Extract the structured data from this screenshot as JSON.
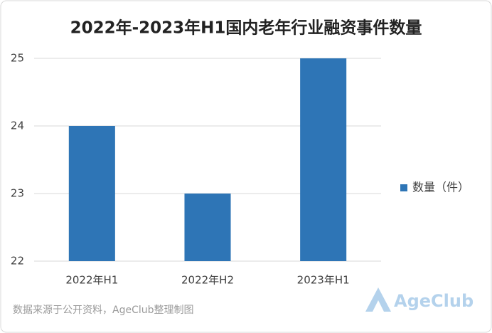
{
  "chart_data": {
    "type": "bar",
    "title": "2022年-2023年H1国内老年行业融资事件数量",
    "categories": [
      "2022年H1",
      "2022年H2",
      "2023年H1"
    ],
    "series": [
      {
        "name": "数量（件）",
        "color": "#2e75b6",
        "values": [
          24,
          23,
          25
        ]
      }
    ],
    "ylim": [
      22,
      25
    ],
    "yticks": [
      22,
      23,
      24,
      25
    ],
    "grid": true,
    "legend": "right",
    "source": "数据来源于公开资料，AgeClub整理制图",
    "logo": "AgeClub"
  }
}
